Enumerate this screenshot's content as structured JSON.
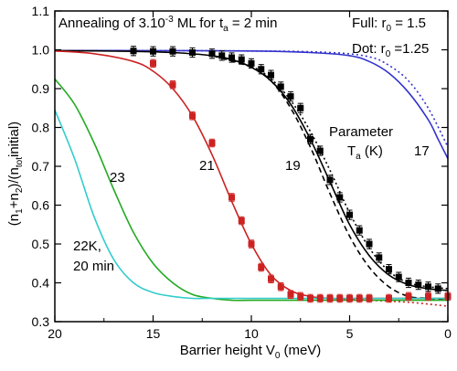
{
  "chart_data": {
    "type": "scatter",
    "xlabel": "Barrier height V",
    "xlabel_sub": "0",
    "xlabel_unit": "(meV)",
    "ylabel": "(n",
    "ylabel_full_parts": [
      "(n",
      "1",
      "+n",
      "2",
      ")/(n",
      "tot",
      "initial)"
    ],
    "xlim": [
      20,
      0
    ],
    "ylim": [
      0.3,
      1.1
    ],
    "x_reversed": true,
    "xticks": [
      20,
      15,
      10,
      5,
      0
    ],
    "yticks": [
      0.3,
      0.4,
      0.5,
      0.6,
      0.7,
      0.8,
      0.9,
      1.0,
      1.1
    ],
    "grid": false,
    "annotations": {
      "title_line": "Annealing of 3.10",
      "title_exp": "-3",
      "title_rest": " ML for t",
      "title_sub": "a",
      "title_end": " = 2 min",
      "full_label": "Full: r",
      "full_sub": "0",
      "full_val": " = 1.5",
      "dot_label": "Dot: r",
      "dot_sub": "0",
      "dot_val": " =1.25",
      "param_line1": "Parameter",
      "param_line2": "T",
      "param_sub": "a",
      "param_unit": " (K)",
      "label_17": "17",
      "label_19": "19",
      "label_21": "21",
      "label_23": "23",
      "label_22k_line1": "22K,",
      "label_22k_line2": "20 min"
    },
    "series": [
      {
        "color": "#3333cc",
        "style": "solid",
        "x": [
          20,
          15,
          10,
          7,
          5,
          4,
          3,
          2,
          1,
          0.5,
          0
        ],
        "y": [
          0.998,
          0.998,
          0.997,
          0.993,
          0.985,
          0.97,
          0.94,
          0.89,
          0.82,
          0.77,
          0.72
        ]
      },
      {
        "color": "#3333cc",
        "style": "dotted",
        "x": [
          20,
          10,
          6,
          4,
          3,
          2,
          1,
          0
        ],
        "y": [
          0.998,
          0.997,
          0.993,
          0.982,
          0.96,
          0.92,
          0.85,
          0.75
        ]
      },
      {
        "color": "#000000",
        "style": "solid",
        "x": [
          20,
          16,
          14,
          12,
          11,
          10,
          9,
          8,
          7,
          6,
          5,
          4,
          3,
          2,
          1,
          0
        ],
        "y": [
          0.998,
          0.996,
          0.993,
          0.985,
          0.975,
          0.955,
          0.92,
          0.86,
          0.77,
          0.66,
          0.55,
          0.47,
          0.42,
          0.395,
          0.385,
          0.38
        ]
      },
      {
        "color": "#000000",
        "style": "dashed",
        "x": [
          12,
          10,
          9,
          8,
          7,
          6,
          5,
          4,
          3,
          2,
          1,
          0
        ],
        "y": [
          0.985,
          0.955,
          0.92,
          0.85,
          0.75,
          0.63,
          0.52,
          0.44,
          0.39,
          0.365,
          0.36,
          0.355
        ]
      },
      {
        "color": "#000000",
        "style": "dotted",
        "x": [
          12,
          10,
          9,
          8,
          7,
          6,
          5,
          4,
          3,
          2,
          1,
          0
        ],
        "y": [
          0.985,
          0.957,
          0.925,
          0.87,
          0.79,
          0.69,
          0.58,
          0.49,
          0.43,
          0.4,
          0.39,
          0.385
        ]
      },
      {
        "color": "#cc2222",
        "style": "solid",
        "x": [
          20,
          18,
          16,
          15,
          14,
          13,
          12,
          11,
          10,
          9,
          8,
          7,
          6,
          4,
          2,
          0
        ],
        "y": [
          0.997,
          0.99,
          0.97,
          0.945,
          0.9,
          0.83,
          0.73,
          0.61,
          0.5,
          0.42,
          0.38,
          0.365,
          0.36,
          0.36,
          0.36,
          0.36
        ]
      },
      {
        "color": "#cc2222",
        "style": "dotted",
        "x": [
          6,
          4,
          2,
          0
        ],
        "y": [
          0.36,
          0.355,
          0.35,
          0.34
        ]
      },
      {
        "color": "#22aa22",
        "style": "solid",
        "x": [
          20,
          19,
          18,
          17,
          16,
          15,
          14,
          13,
          12,
          11,
          10,
          8,
          5,
          0
        ],
        "y": [
          0.925,
          0.86,
          0.76,
          0.64,
          0.53,
          0.45,
          0.4,
          0.37,
          0.36,
          0.355,
          0.355,
          0.355,
          0.355,
          0.355
        ]
      },
      {
        "color": "#33cccc",
        "style": "solid",
        "x": [
          20,
          19,
          18,
          17,
          16,
          15,
          14,
          13,
          12,
          10,
          5,
          0
        ],
        "y": [
          0.845,
          0.72,
          0.57,
          0.46,
          0.4,
          0.375,
          0.365,
          0.36,
          0.36,
          0.36,
          0.36,
          0.36
        ]
      }
    ],
    "points": [
      {
        "color": "#000000",
        "x": [
          16,
          15,
          14,
          13,
          12,
          11.5,
          11,
          10.5,
          10,
          9.5,
          9,
          8.5,
          8,
          7.5,
          7,
          6.5,
          6,
          5.5,
          5,
          4.5,
          4,
          3.5,
          3,
          2.5,
          2,
          1.5,
          1,
          0.5
        ],
        "y": [
          0.997,
          0.996,
          0.996,
          0.993,
          0.99,
          0.985,
          0.98,
          0.975,
          0.965,
          0.95,
          0.935,
          0.905,
          0.88,
          0.85,
          0.77,
          0.74,
          0.665,
          0.62,
          0.575,
          0.535,
          0.5,
          0.465,
          0.435,
          0.415,
          0.4,
          0.395,
          0.39,
          0.385
        ],
        "err": 0.012
      },
      {
        "color": "#cc2222",
        "x": [
          15,
          14,
          13,
          12,
          11,
          10.5,
          10,
          9.5,
          9,
          8.5,
          8,
          7.5,
          7,
          6.5,
          6,
          5.5,
          5,
          4.5,
          4,
          3,
          2,
          1,
          0
        ],
        "y": [
          0.965,
          0.91,
          0.83,
          0.76,
          0.62,
          0.56,
          0.5,
          0.44,
          0.41,
          0.39,
          0.37,
          0.365,
          0.36,
          0.36,
          0.36,
          0.36,
          0.36,
          0.36,
          0.36,
          0.36,
          0.365,
          0.365,
          0.365
        ],
        "err": 0.01
      }
    ]
  }
}
